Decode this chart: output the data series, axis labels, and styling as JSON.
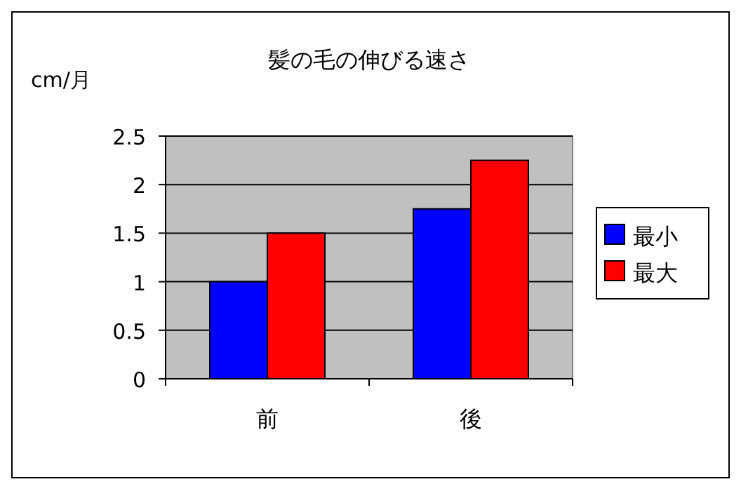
{
  "chart_data": {
    "type": "bar",
    "title": "髪の毛の伸びる速さ",
    "ylabel": "cm/月",
    "categories": [
      "前",
      "後"
    ],
    "series": [
      {
        "name": "最小",
        "color": "#0000ff",
        "values": [
          1,
          1.75
        ]
      },
      {
        "name": "最大",
        "color": "#ff0000",
        "values": [
          1.5,
          2.25
        ]
      }
    ],
    "ylim": [
      0,
      2.5
    ],
    "yticks": [
      0,
      0.5,
      1,
      1.5,
      2,
      2.5
    ],
    "grid": "y",
    "legend": "right"
  }
}
